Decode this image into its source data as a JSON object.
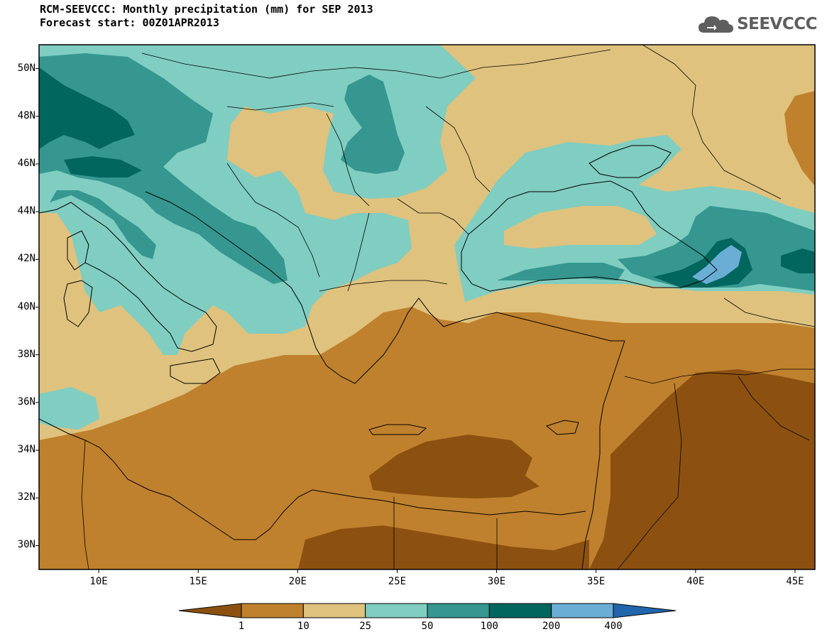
{
  "title_line1": "RCM-SEEVCCC: Monthly precipitation (mm) for SEP 2013",
  "title_line2": "Forecast start: 00Z01APR2013",
  "logo_text": "SEEVCCC",
  "lat_ticks": [
    {
      "label": "50N",
      "value": 50
    },
    {
      "label": "48N",
      "value": 48
    },
    {
      "label": "46N",
      "value": 46
    },
    {
      "label": "44N",
      "value": 44
    },
    {
      "label": "42N",
      "value": 42
    },
    {
      "label": "40N",
      "value": 40
    },
    {
      "label": "38N",
      "value": 38
    },
    {
      "label": "36N",
      "value": 36
    },
    {
      "label": "34N",
      "value": 34
    },
    {
      "label": "32N",
      "value": 32
    },
    {
      "label": "30N",
      "value": 30
    }
  ],
  "lon_ticks": [
    {
      "label": "10E",
      "value": 10
    },
    {
      "label": "15E",
      "value": 15
    },
    {
      "label": "20E",
      "value": 20
    },
    {
      "label": "25E",
      "value": 25
    },
    {
      "label": "30E",
      "value": 30
    },
    {
      "label": "35E",
      "value": 35
    },
    {
      "label": "40E",
      "value": 40
    },
    {
      "label": "45E",
      "value": 45
    }
  ],
  "extent": {
    "lon_min": 7,
    "lon_max": 46,
    "lat_min": 29,
    "lat_max": 51
  },
  "colorbar": {
    "levels": [
      "1",
      "10",
      "25",
      "50",
      "100",
      "200",
      "400"
    ],
    "colors": [
      "#8c5110",
      "#bf812d",
      "#dfc27d",
      "#80cdc1",
      "#35978f",
      "#01665e",
      "#6aaed6",
      "#2166ac"
    ]
  }
}
